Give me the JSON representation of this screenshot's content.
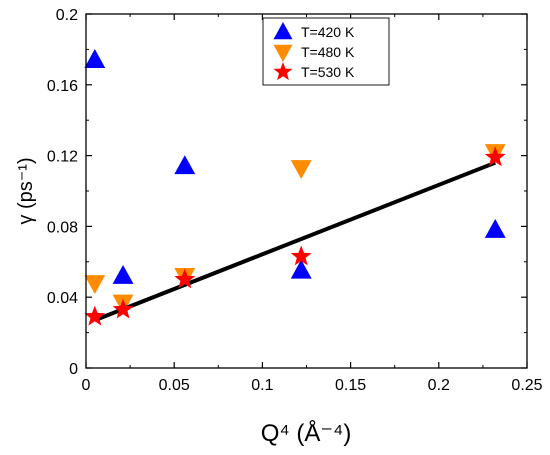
{
  "chart_data": {
    "type": "scatter",
    "xlabel": "Q⁴ (Å⁻⁴)",
    "ylabel": "γ (ps⁻¹)",
    "xlim": [
      0,
      0.25
    ],
    "ylim": [
      0,
      0.2
    ],
    "xticks": [
      0,
      0.05,
      0.1,
      0.15,
      0.2,
      0.25
    ],
    "xtick_labels": [
      "0",
      "0.05",
      "0.1",
      "0.15",
      "0.2",
      "0.25"
    ],
    "yticks": [
      0,
      0.04,
      0.08,
      0.12,
      0.16,
      0.2
    ],
    "ytick_labels": [
      "0",
      "0.04",
      "0.08",
      "0.12",
      "0.16",
      "0.2"
    ],
    "grid": false,
    "legend_position": "top-center",
    "series": [
      {
        "name": "T=420 K",
        "marker": "triangle-up",
        "color": "#0000ff",
        "x": [
          0.005,
          0.021,
          0.056,
          0.122,
          0.232
        ],
        "y": [
          0.174,
          0.052,
          0.114,
          0.055,
          0.078
        ]
      },
      {
        "name": "T=480 K",
        "marker": "triangle-down",
        "color": "#ff8c00",
        "x": [
          0.005,
          0.021,
          0.056,
          0.122,
          0.232
        ],
        "y": [
          0.048,
          0.037,
          0.052,
          0.113,
          0.122
        ]
      },
      {
        "name": "T=530 K",
        "marker": "star",
        "color": "#ff0000",
        "x": [
          0.005,
          0.021,
          0.056,
          0.122,
          0.232
        ],
        "y": [
          0.029,
          0.033,
          0.05,
          0.063,
          0.119
        ]
      }
    ],
    "fit_line": {
      "color": "#000000",
      "x": [
        0.005,
        0.232
      ],
      "y": [
        0.027,
        0.116
      ]
    }
  }
}
